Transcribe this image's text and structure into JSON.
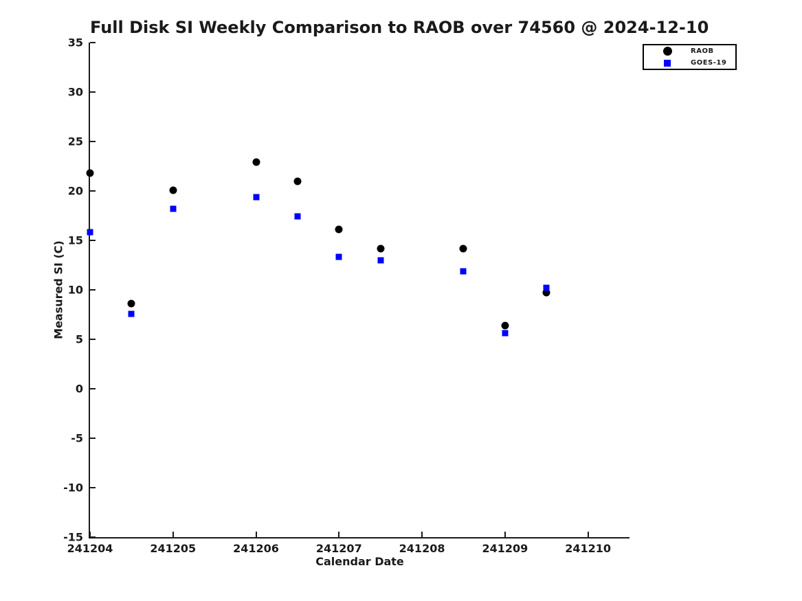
{
  "chart_data": {
    "type": "scatter",
    "title": "Full Disk SI Weekly Comparison to RAOB over 74560 @ 2024-12-10",
    "xlabel": "Calendar Date",
    "ylabel": "Measured SI (C)",
    "xlim": [
      241204,
      241210.5
    ],
    "ylim": [
      -15,
      35
    ],
    "x_ticks": [
      241204,
      241205,
      241206,
      241207,
      241208,
      241209,
      241210
    ],
    "y_ticks": [
      35,
      30,
      25,
      20,
      15,
      10,
      5,
      0,
      -5,
      -10,
      -15
    ],
    "grid": false,
    "legend_position": "top-right",
    "axis_color": "#1a1a1a",
    "series": [
      {
        "name": "RAOB",
        "marker": "circle",
        "color": "#000000",
        "x": [
          241204,
          241204.5,
          241205,
          241206,
          241206.5,
          241207,
          241207.5,
          241208.5,
          241209,
          241209.5
        ],
        "y": [
          21.8,
          8.6,
          20.1,
          22.9,
          21.0,
          16.1,
          14.2,
          14.2,
          6.4,
          9.7
        ]
      },
      {
        "name": "GOES-19",
        "marker": "square",
        "color": "#0000ff",
        "x": [
          241204,
          241204.5,
          241205,
          241206,
          241206.5,
          241207,
          241207.5,
          241208.5,
          241209,
          241209.5
        ],
        "y": [
          15.8,
          7.6,
          18.2,
          19.4,
          17.4,
          13.3,
          13.0,
          11.9,
          5.6,
          10.2
        ]
      }
    ]
  }
}
